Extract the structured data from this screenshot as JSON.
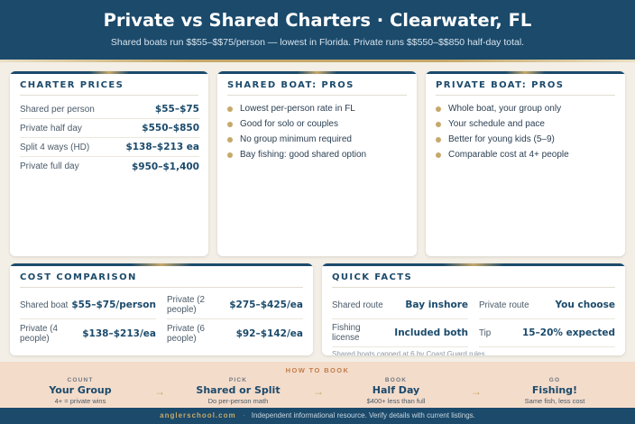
{
  "header": {
    "title": "Private vs Shared Charters · Clearwater, FL",
    "subtitle": "Shared boats run $$55–$$75/person — lowest in Florida. Private runs $$550–$$850 half-day total."
  },
  "charter_prices": {
    "title": "CHARTER PRICES",
    "rows": [
      {
        "label": "Shared per person",
        "value": "$55–$75"
      },
      {
        "label": "Private half day",
        "value": "$550–$850"
      },
      {
        "label": "Split 4 ways (HD)",
        "value": "$138–$213 ea"
      },
      {
        "label": "Private full day",
        "value": "$950–$1,400"
      }
    ]
  },
  "shared_pros": {
    "title": "SHARED BOAT: PROS",
    "items": [
      "Lowest per-person rate in FL",
      "Good for solo or couples",
      "No group minimum required",
      "Bay fishing: good shared option"
    ]
  },
  "private_pros": {
    "title": "PRIVATE BOAT: PROS",
    "items": [
      "Whole boat, your group only",
      "Your schedule and pace",
      "Better for young kids (5–9)",
      "Comparable cost at 4+ people"
    ]
  },
  "cost_comparison": {
    "title": "COST COMPARISON",
    "cells": [
      {
        "label": "Shared boat",
        "value": "$55–$75/person"
      },
      {
        "label": "Private (2 people)",
        "value": "$275–$425/ea"
      },
      {
        "label": "Private (4 people)",
        "value": "$138–$213/ea"
      },
      {
        "label": "Private (6 people)",
        "value": "$92–$142/ea"
      }
    ]
  },
  "quick_facts": {
    "title": "QUICK FACTS",
    "cells": [
      {
        "label": "Shared route",
        "value": "Bay inshore"
      },
      {
        "label": "Private route",
        "value": "You choose"
      },
      {
        "label": "Fishing license",
        "value": "Included both"
      },
      {
        "label": "Tip",
        "value": "15–20% expected"
      }
    ],
    "note": "Shared boats capped at 6 by Coast Guard rules."
  },
  "how_to_book": {
    "title": "HOW TO BOOK",
    "steps": [
      {
        "kicker": "COUNT",
        "title": "Your Group",
        "desc": "4+ = private wins"
      },
      {
        "kicker": "PICK",
        "title": "Shared or Split",
        "desc": "Do per-person math"
      },
      {
        "kicker": "BOOK",
        "title": "Half Day",
        "desc": "$400+ less than full"
      },
      {
        "kicker": "GO",
        "title": "Fishing!",
        "desc": "Same fish, less cost"
      }
    ],
    "arrow": "→"
  },
  "footer": {
    "brand": "anglerschool.com",
    "separator": "·",
    "text": "Independent informational resource. Verify details with current listings."
  },
  "colors": {
    "navy": "#1b4a6b",
    "gold": "#c6a86a",
    "cream": "#f3efe6",
    "peach": "#f4dccb"
  }
}
